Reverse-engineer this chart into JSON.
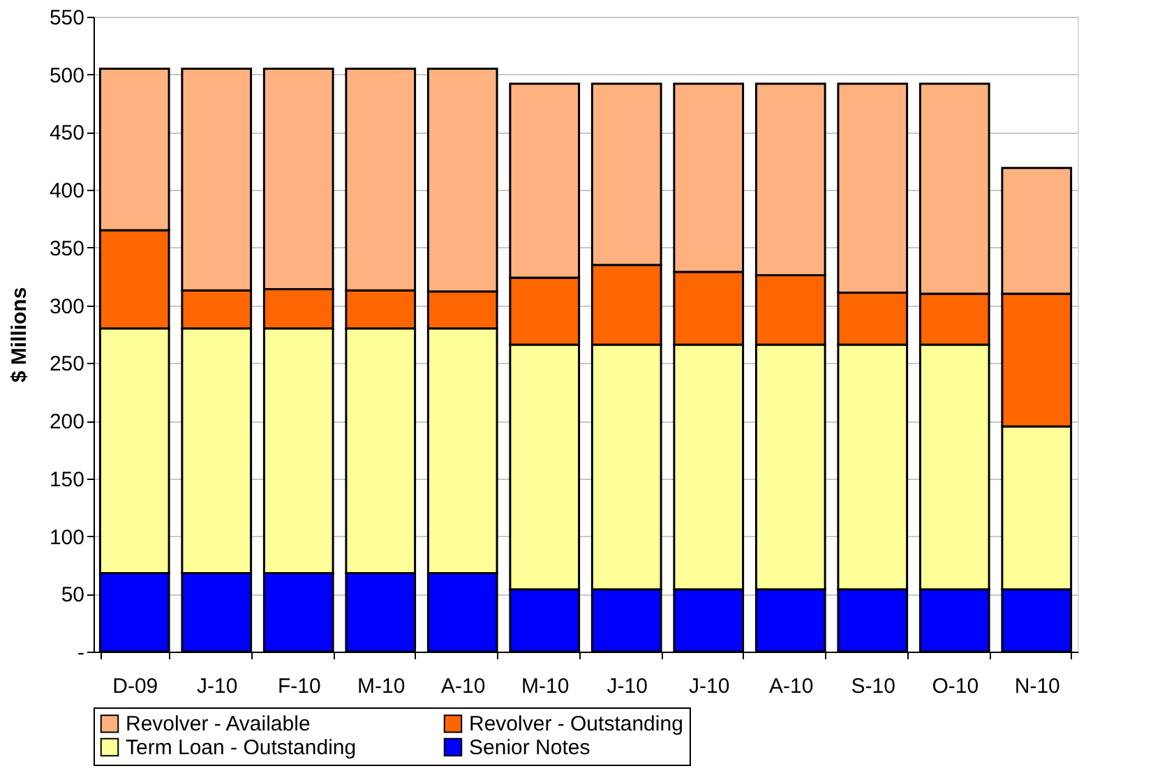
{
  "chart_data": {
    "type": "bar",
    "stacked": true,
    "ylabel": "$ Millions",
    "categories": [
      "D-09",
      "J-10",
      "F-10",
      "M-10",
      "A-10",
      "M-10",
      "J-10",
      "J-10",
      "A-10",
      "S-10",
      "O-10",
      "N-10"
    ],
    "series": [
      {
        "name": "Senior Notes",
        "color": "#0000ff",
        "values": [
          68,
          68,
          68,
          68,
          68,
          54,
          54,
          54,
          54,
          54,
          54,
          54
        ]
      },
      {
        "name": "Term Loan - Outstanding",
        "color": "#ffff99",
        "values": [
          212,
          212,
          212,
          212,
          212,
          212,
          212,
          212,
          212,
          212,
          212,
          141
        ]
      },
      {
        "name": "Revolver - Outstanding",
        "color": "#ff6600",
        "values": [
          85,
          33,
          34,
          33,
          32,
          58,
          69,
          63,
          60,
          45,
          44,
          115
        ]
      },
      {
        "name": "Revolver - Available",
        "color": "#ffb27f",
        "values": [
          140,
          192,
          191,
          192,
          193,
          168,
          157,
          163,
          166,
          181,
          182,
          109
        ]
      }
    ],
    "ylim": [
      0,
      550
    ],
    "yticks": [
      {
        "value": 0,
        "label": "-"
      },
      50,
      100,
      150,
      200,
      250,
      300,
      350,
      400,
      450,
      500,
      550
    ],
    "grid": "y",
    "legend": "bottom"
  }
}
